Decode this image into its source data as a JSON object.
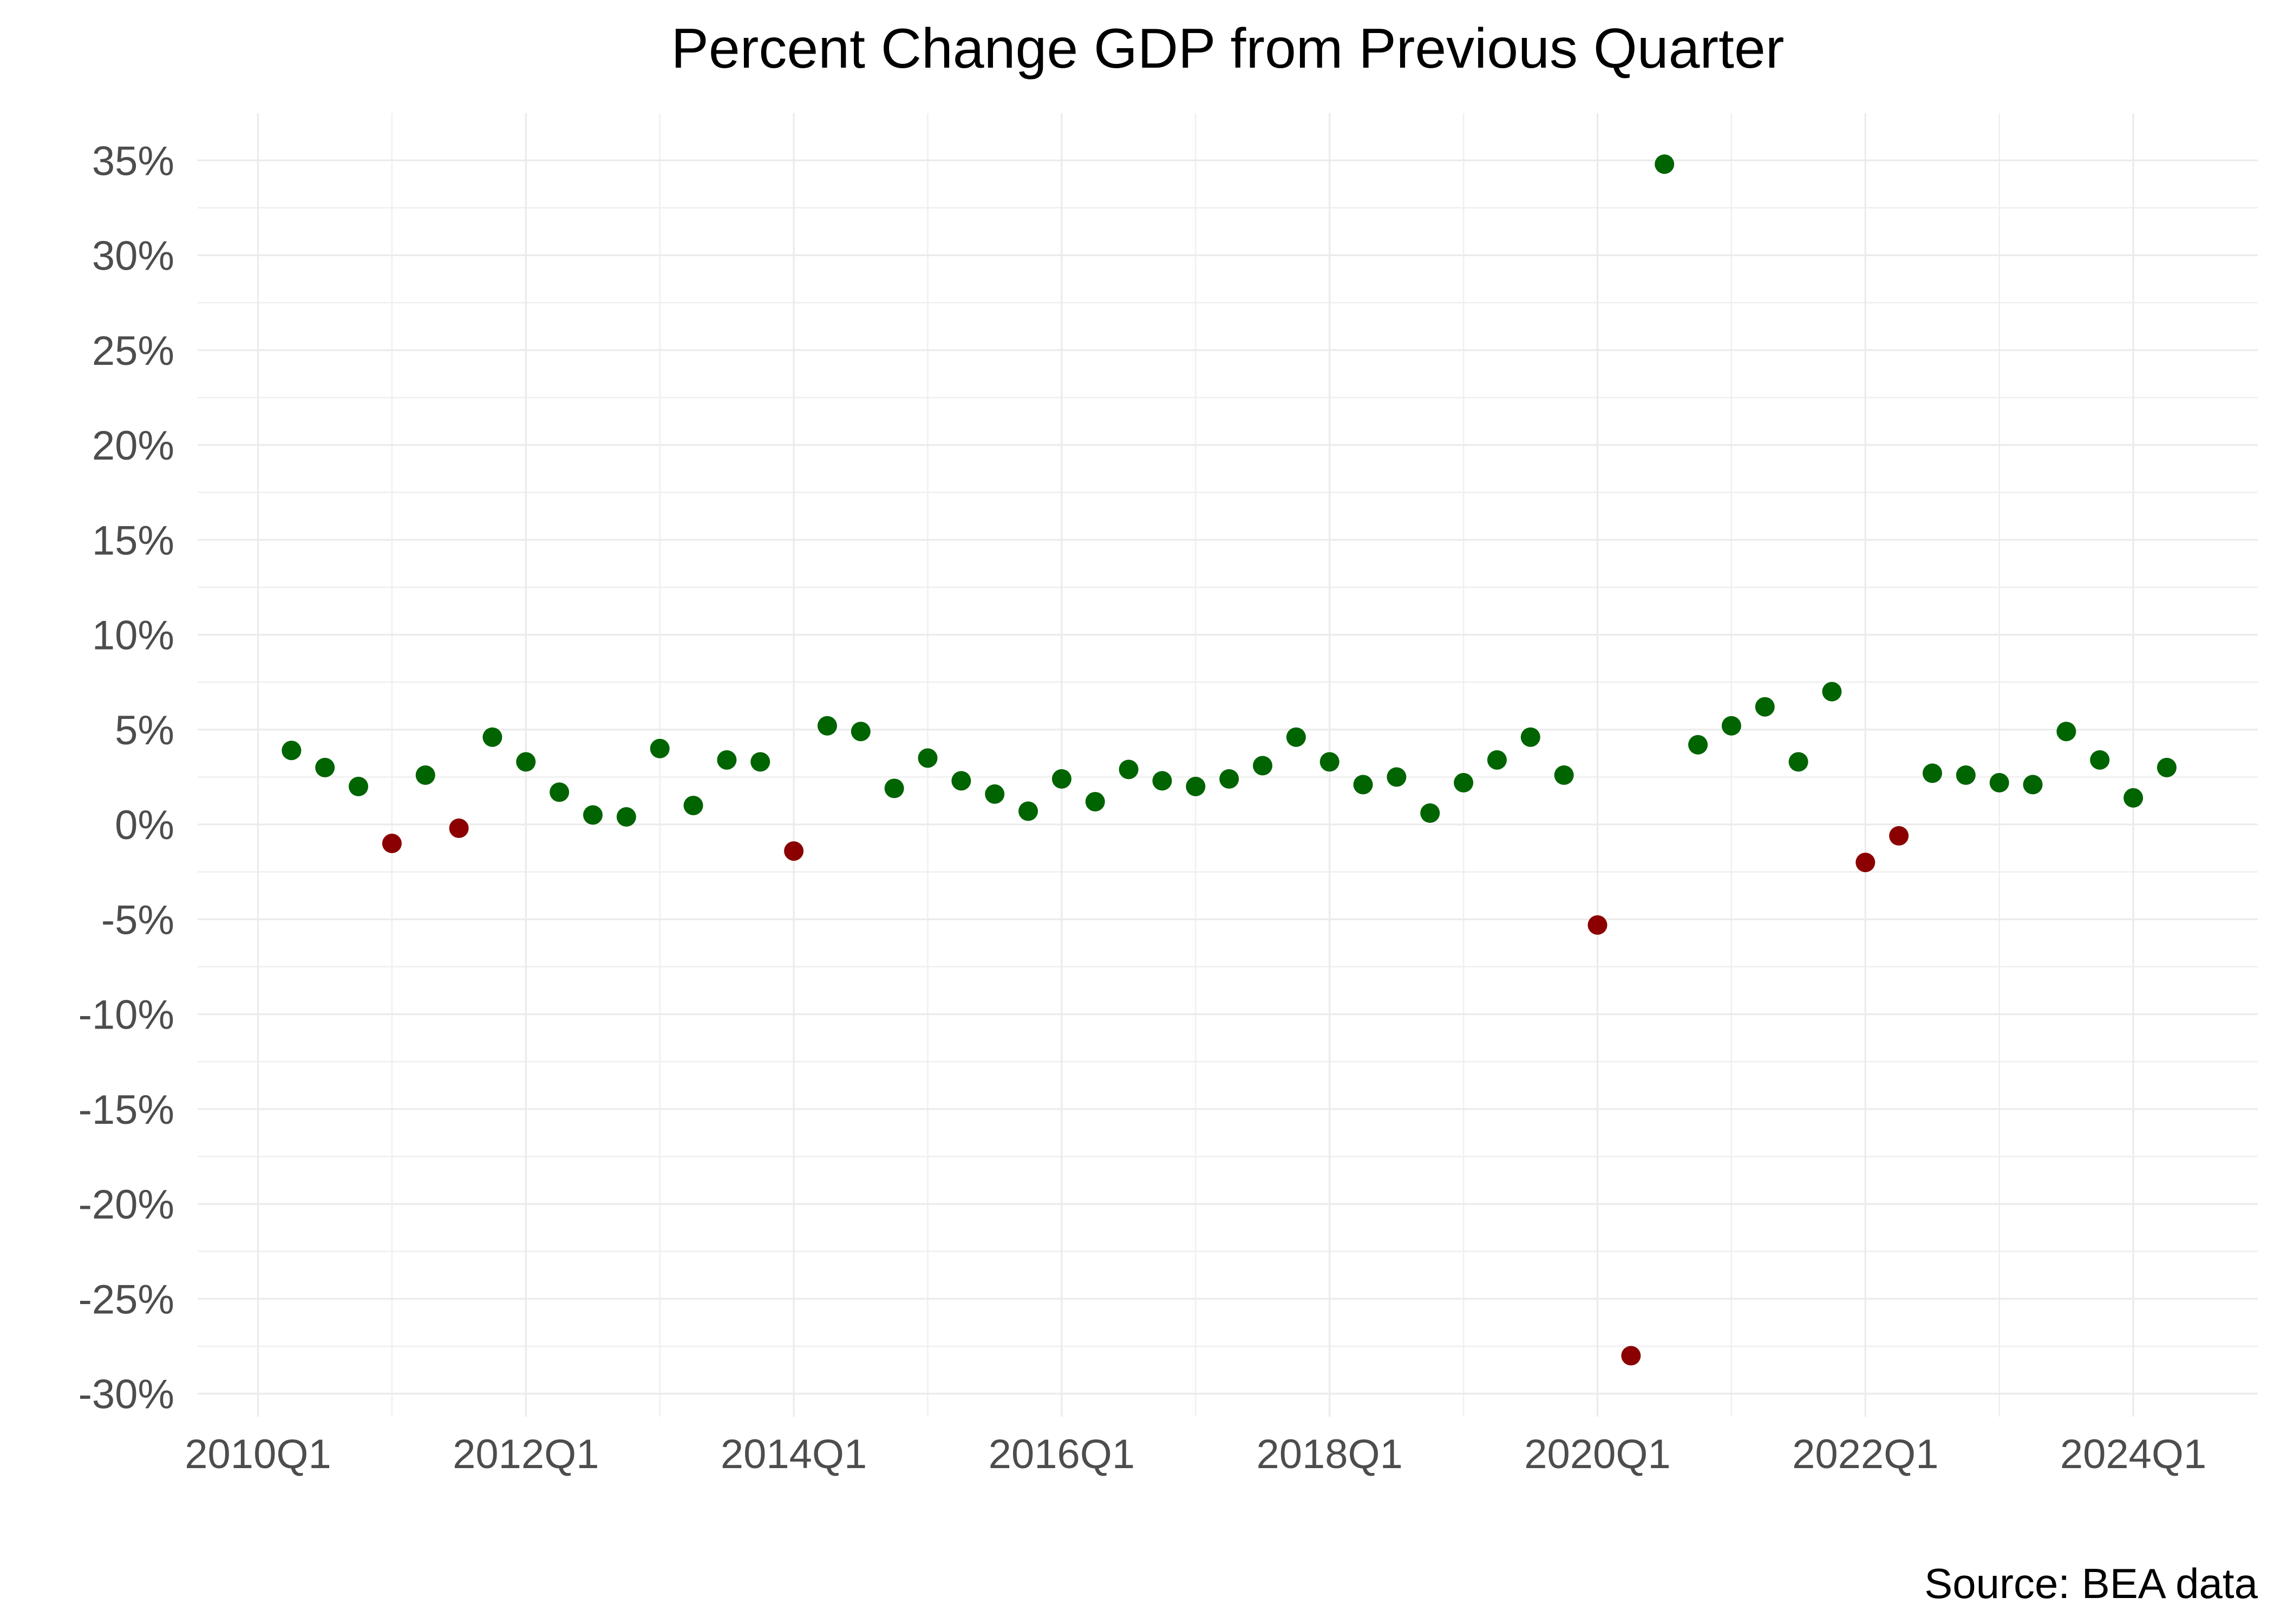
{
  "title": "Percent Change GDP from Previous Quarter",
  "source_note": "Source: BEA data",
  "colors": {
    "positive": "#006400",
    "negative": "#8B0000",
    "grid_major": "#EBEBEB",
    "grid_minor": "#EFEFEF",
    "axis_text": "#4D4D4D",
    "title_text": "#000000",
    "background": "#FFFFFF"
  },
  "chart_data": {
    "type": "scatter",
    "title": "Percent Change GDP from Previous Quarter",
    "xlabel": "",
    "ylabel": "",
    "legend_position": "none",
    "grid": "on",
    "point_rule": "green when value >= 0, dark red when value < 0",
    "ylim": [
      -31.2,
      37.5
    ],
    "y_major_step": 5,
    "y_minor_step": 2.5,
    "y_ticks": [
      {
        "value": 35,
        "label": "35%"
      },
      {
        "value": 30,
        "label": "30%"
      },
      {
        "value": 25,
        "label": "25%"
      },
      {
        "value": 20,
        "label": "20%"
      },
      {
        "value": 15,
        "label": "15%"
      },
      {
        "value": 10,
        "label": "10%"
      },
      {
        "value": 5,
        "label": "5%"
      },
      {
        "value": 0,
        "label": "0%"
      },
      {
        "value": -5,
        "label": "-5%"
      },
      {
        "value": -10,
        "label": "-10%"
      },
      {
        "value": -15,
        "label": "-15%"
      },
      {
        "value": -20,
        "label": "-20%"
      },
      {
        "value": -25,
        "label": "-25%"
      },
      {
        "value": -30,
        "label": "-30%"
      }
    ],
    "x_ticks": [
      {
        "year": 2010,
        "label": "2010Q1"
      },
      {
        "year": 2012,
        "label": "2012Q1"
      },
      {
        "year": 2014,
        "label": "2014Q1"
      },
      {
        "year": 2016,
        "label": "2016Q1"
      },
      {
        "year": 2018,
        "label": "2018Q1"
      },
      {
        "year": 2020,
        "label": "2020Q1"
      },
      {
        "year": 2022,
        "label": "2022Q1"
      },
      {
        "year": 2024,
        "label": "2024Q1"
      }
    ],
    "x_gridline_years": [
      2010,
      2011,
      2012,
      2013,
      2014,
      2015,
      2016,
      2017,
      2018,
      2019,
      2020,
      2021,
      2022,
      2023,
      2024
    ],
    "points": [
      {
        "quarter": "2010Q2",
        "value": 3.9
      },
      {
        "quarter": "2010Q3",
        "value": 3.0
      },
      {
        "quarter": "2010Q4",
        "value": 2.0
      },
      {
        "quarter": "2011Q1",
        "value": -1.0
      },
      {
        "quarter": "2011Q2",
        "value": 2.6
      },
      {
        "quarter": "2011Q3",
        "value": -0.2
      },
      {
        "quarter": "2011Q4",
        "value": 4.6
      },
      {
        "quarter": "2012Q1",
        "value": 3.3
      },
      {
        "quarter": "2012Q2",
        "value": 1.7
      },
      {
        "quarter": "2012Q3",
        "value": 0.5
      },
      {
        "quarter": "2012Q4",
        "value": 0.4
      },
      {
        "quarter": "2013Q1",
        "value": 4.0
      },
      {
        "quarter": "2013Q2",
        "value": 1.0
      },
      {
        "quarter": "2013Q3",
        "value": 3.4
      },
      {
        "quarter": "2013Q4",
        "value": 3.3
      },
      {
        "quarter": "2014Q1",
        "value": -1.4
      },
      {
        "quarter": "2014Q2",
        "value": 5.2
      },
      {
        "quarter": "2014Q3",
        "value": 4.9
      },
      {
        "quarter": "2014Q4",
        "value": 1.9
      },
      {
        "quarter": "2015Q1",
        "value": 3.5
      },
      {
        "quarter": "2015Q2",
        "value": 2.3
      },
      {
        "quarter": "2015Q3",
        "value": 1.6
      },
      {
        "quarter": "2015Q4",
        "value": 0.7
      },
      {
        "quarter": "2016Q1",
        "value": 2.4
      },
      {
        "quarter": "2016Q2",
        "value": 1.2
      },
      {
        "quarter": "2016Q3",
        "value": 2.9
      },
      {
        "quarter": "2016Q4",
        "value": 2.3
      },
      {
        "quarter": "2017Q1",
        "value": 2.0
      },
      {
        "quarter": "2017Q2",
        "value": 2.4
      },
      {
        "quarter": "2017Q3",
        "value": 3.1
      },
      {
        "quarter": "2017Q4",
        "value": 4.6
      },
      {
        "quarter": "2018Q1",
        "value": 3.3
      },
      {
        "quarter": "2018Q2",
        "value": 2.1
      },
      {
        "quarter": "2018Q3",
        "value": 2.5
      },
      {
        "quarter": "2018Q4",
        "value": 0.6
      },
      {
        "quarter": "2019Q1",
        "value": 2.2
      },
      {
        "quarter": "2019Q2",
        "value": 3.4
      },
      {
        "quarter": "2019Q3",
        "value": 4.6
      },
      {
        "quarter": "2019Q4",
        "value": 2.6
      },
      {
        "quarter": "2020Q1",
        "value": -5.3
      },
      {
        "quarter": "2020Q2",
        "value": -28.0
      },
      {
        "quarter": "2020Q3",
        "value": 34.8
      },
      {
        "quarter": "2020Q4",
        "value": 4.2
      },
      {
        "quarter": "2021Q1",
        "value": 5.2
      },
      {
        "quarter": "2021Q2",
        "value": 6.2
      },
      {
        "quarter": "2021Q3",
        "value": 3.3
      },
      {
        "quarter": "2021Q4",
        "value": 7.0
      },
      {
        "quarter": "2022Q1",
        "value": -2.0
      },
      {
        "quarter": "2022Q2",
        "value": -0.6
      },
      {
        "quarter": "2022Q3",
        "value": 2.7
      },
      {
        "quarter": "2022Q4",
        "value": 2.6
      },
      {
        "quarter": "2023Q1",
        "value": 2.2
      },
      {
        "quarter": "2023Q2",
        "value": 2.1
      },
      {
        "quarter": "2023Q3",
        "value": 4.9
      },
      {
        "quarter": "2023Q4",
        "value": 3.4
      },
      {
        "quarter": "2024Q1",
        "value": 1.4
      },
      {
        "quarter": "2024Q2",
        "value": 3.0
      }
    ]
  }
}
